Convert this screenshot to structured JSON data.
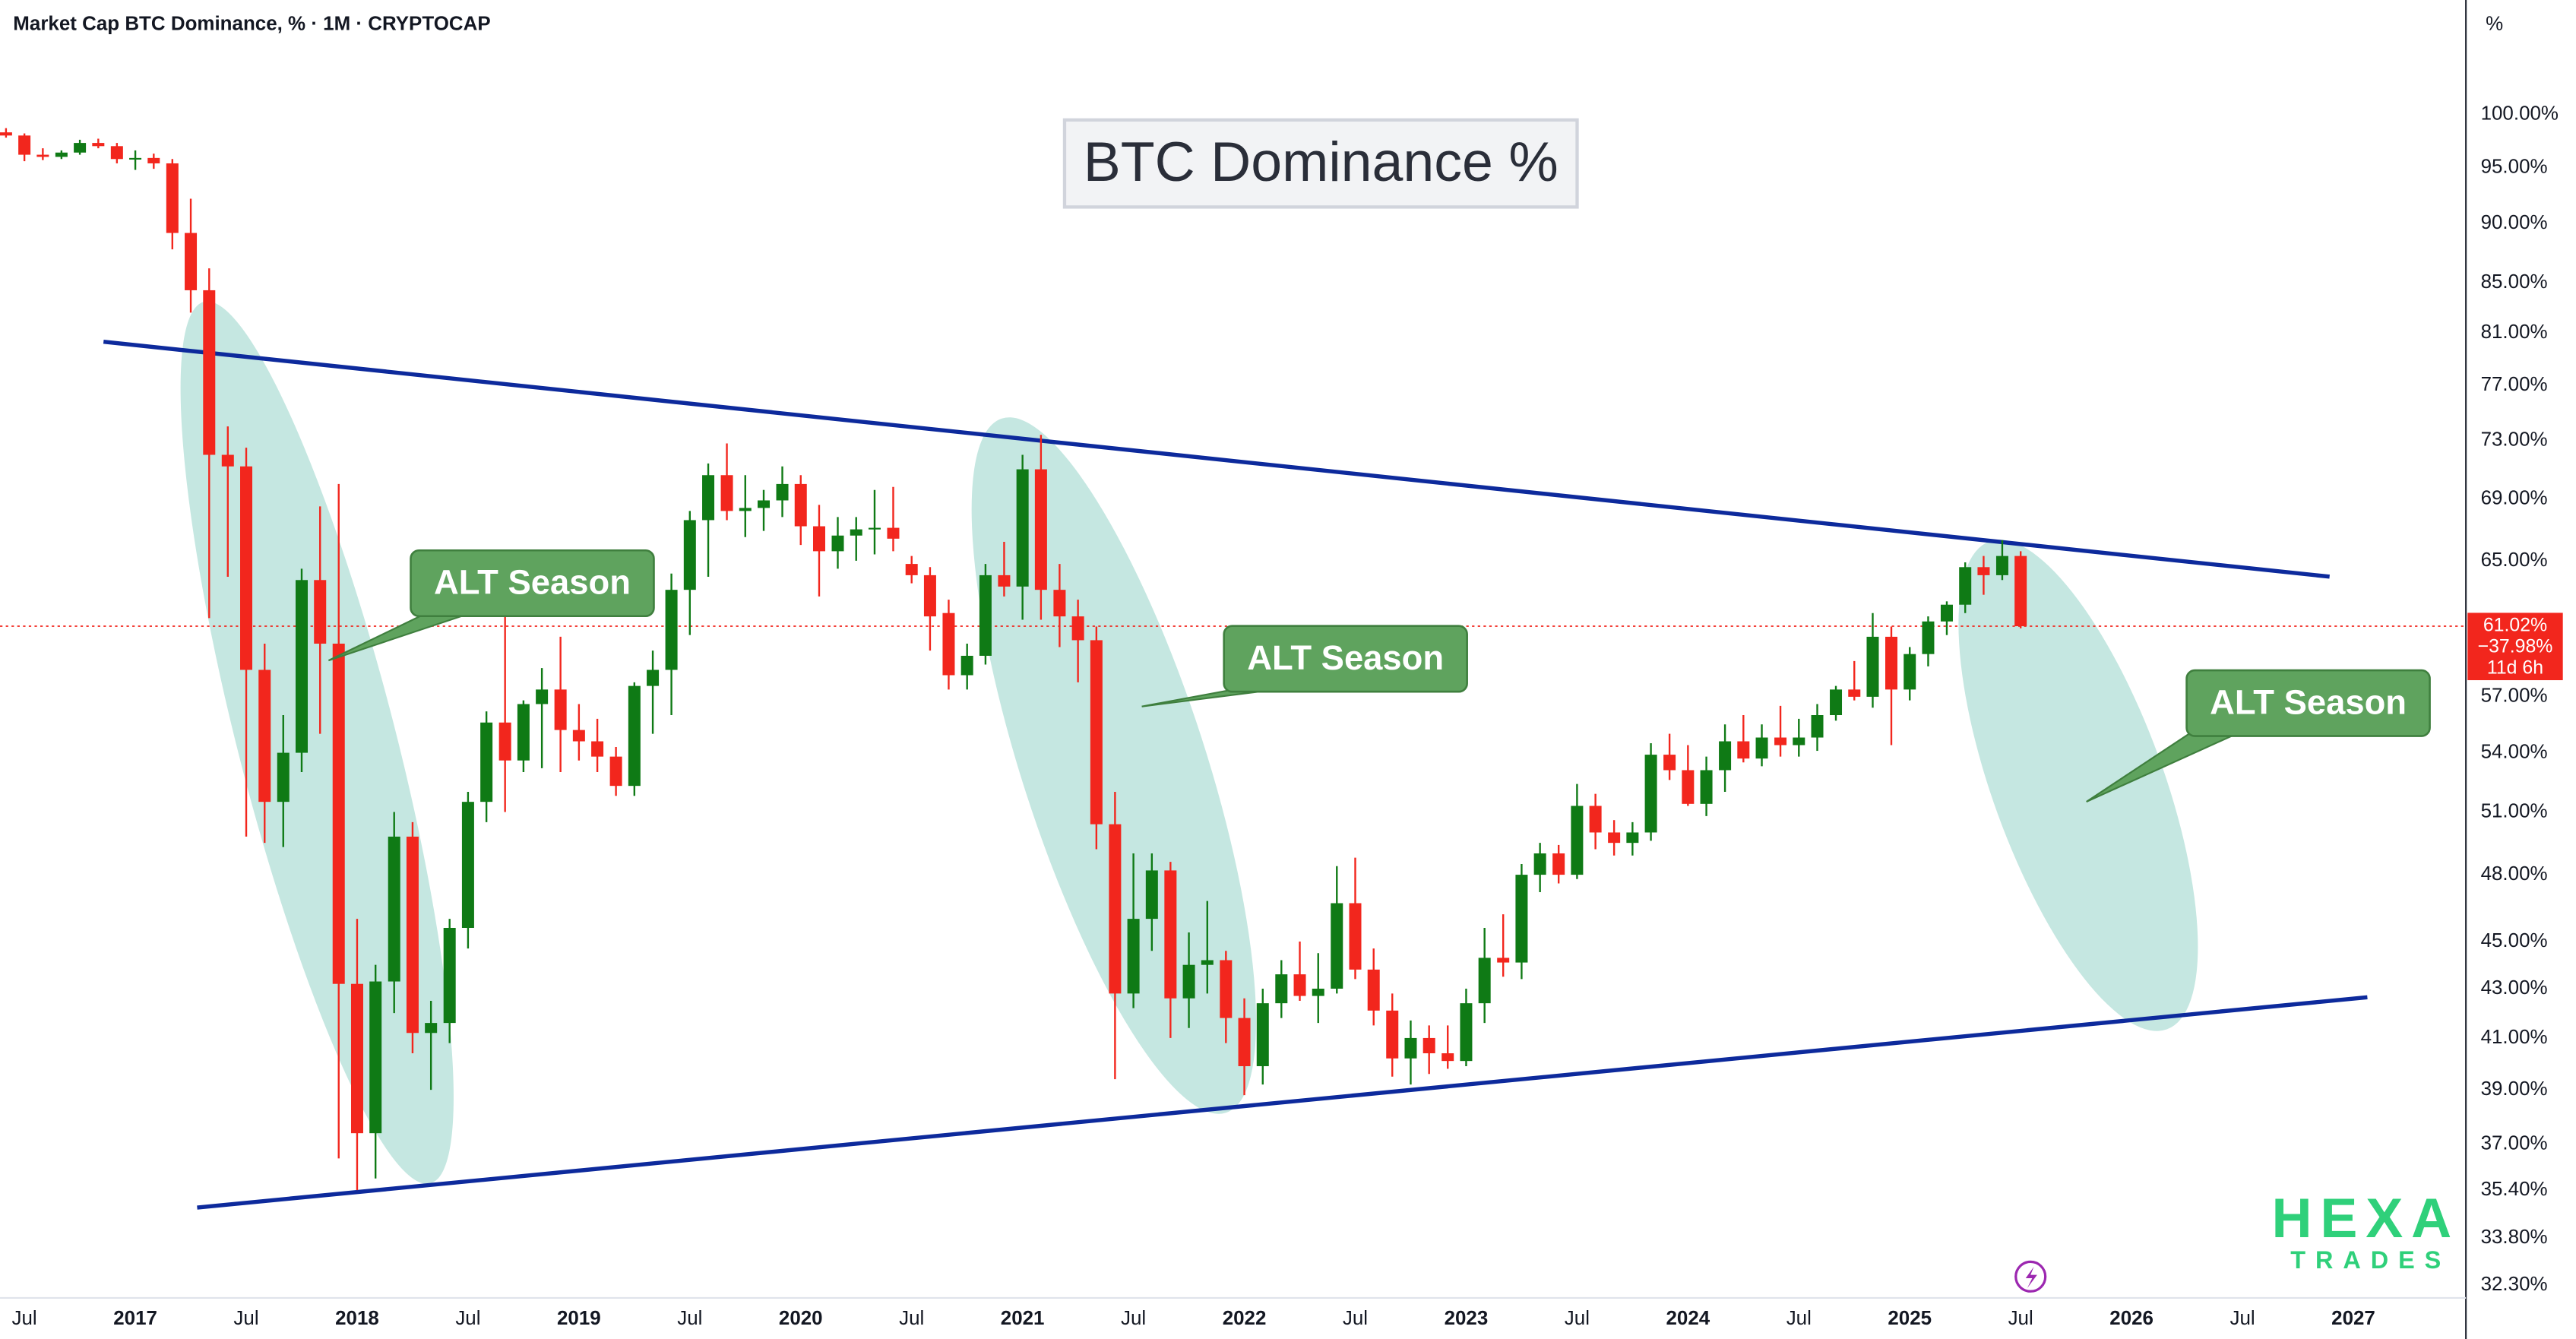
{
  "header": "Market Cap BTC Dominance, % · 1M · CRYPTOCAP",
  "watermark": {
    "line1": "HEXA",
    "line2": "TRADES"
  },
  "chart_data": {
    "type": "candlestick",
    "title": "BTC Dominance %",
    "annotations": [
      "ALT Season",
      "ALT Season",
      "ALT Season"
    ],
    "y_unit": "%",
    "log_scale": true,
    "grid": false,
    "up_color": "#0f7a15",
    "down_color": "#f2261d",
    "last_price": {
      "value": 61.02,
      "label": "61.02%"
    },
    "change_label": "−37.98%",
    "countdown": "11d 6h",
    "x": [
      2016.417,
      2016.5,
      2016.583,
      2016.667,
      2016.75,
      2016.833,
      2016.917,
      2017,
      2017.083,
      2017.167,
      2017.25,
      2017.333,
      2017.417,
      2017.5,
      2017.583,
      2017.667,
      2017.75,
      2017.833,
      2017.917,
      2018,
      2018.083,
      2018.167,
      2018.25,
      2018.333,
      2018.417,
      2018.5,
      2018.583,
      2018.667,
      2018.75,
      2018.833,
      2018.917,
      2019,
      2019.083,
      2019.167,
      2019.25,
      2019.333,
      2019.417,
      2019.5,
      2019.583,
      2019.667,
      2019.75,
      2019.833,
      2019.917,
      2020,
      2020.083,
      2020.167,
      2020.25,
      2020.333,
      2020.417,
      2020.5,
      2020.583,
      2020.667,
      2020.75,
      2020.833,
      2020.917,
      2021,
      2021.083,
      2021.167,
      2021.25,
      2021.333,
      2021.417,
      2021.5,
      2021.583,
      2021.667,
      2021.75,
      2021.833,
      2021.917,
      2022,
      2022.083,
      2022.167,
      2022.25,
      2022.333,
      2022.417,
      2022.5,
      2022.583,
      2022.667,
      2022.75,
      2022.833,
      2022.917,
      2023,
      2023.083,
      2023.167,
      2023.25,
      2023.333,
      2023.417,
      2023.5,
      2023.583,
      2023.667,
      2023.75,
      2023.833,
      2023.917,
      2024,
      2024.083,
      2024.167,
      2024.25,
      2024.333,
      2024.417,
      2024.5,
      2024.583,
      2024.667,
      2024.75,
      2024.833,
      2024.917,
      2025,
      2025.083,
      2025.167,
      2025.25,
      2025.333,
      2025.417,
      2025.5
    ],
    "open": [
      98.3,
      98.0,
      96.2,
      96.0,
      96.4,
      97.3,
      97.0,
      95.8,
      95.9,
      95.4,
      89.2,
      84.4,
      72.0,
      71.2,
      58.5,
      51.5,
      54.0,
      63.8,
      60.0,
      43.2,
      37.4,
      43.3,
      49.8,
      41.2,
      41.6,
      45.6,
      51.5,
      55.6,
      53.6,
      56.6,
      57.4,
      55.2,
      54.6,
      53.8,
      52.3,
      57.6,
      58.5,
      63.2,
      67.6,
      70.6,
      68.2,
      68.4,
      68.9,
      70.0,
      67.2,
      65.6,
      66.6,
      67.0,
      67.1,
      64.8,
      64.1,
      61.8,
      58.2,
      59.3,
      64.1,
      63.4,
      71.0,
      63.2,
      61.6,
      60.2,
      50.4,
      42.8,
      46.0,
      48.2,
      42.6,
      44.0,
      44.2,
      41.8,
      39.9,
      42.4,
      43.6,
      42.7,
      43.0,
      46.7,
      43.8,
      42.1,
      40.2,
      41.0,
      40.4,
      40.1,
      42.4,
      44.3,
      44.1,
      48.0,
      49.0,
      48.0,
      51.3,
      50.0,
      49.5,
      50.0,
      53.9,
      53.1,
      51.4,
      53.1,
      54.6,
      53.7,
      54.8,
      54.4,
      54.8,
      56.0,
      57.4,
      57.0,
      60.4,
      57.4,
      59.4,
      61.3,
      62.3,
      64.6,
      64.1,
      65.3
    ],
    "high": [
      98.7,
      98.2,
      96.8,
      96.6,
      97.6,
      97.7,
      97.3,
      96.6,
      96.3,
      95.8,
      92.2,
      86.2,
      74.0,
      72.5,
      60.0,
      56.0,
      64.5,
      68.5,
      70.0,
      46.0,
      44.0,
      51.0,
      50.5,
      42.5,
      46.0,
      52.0,
      56.2,
      62.3,
      56.8,
      58.6,
      60.4,
      56.6,
      55.8,
      54.3,
      57.8,
      59.6,
      64.2,
      68.2,
      71.4,
      72.8,
      70.6,
      69.6,
      71.2,
      70.6,
      68.6,
      67.8,
      67.8,
      69.6,
      69.8,
      65.3,
      64.6,
      62.6,
      60.0,
      64.8,
      66.2,
      72.0,
      73.4,
      64.8,
      62.6,
      61.0,
      52.0,
      49.0,
      49.0,
      48.6,
      45.4,
      46.8,
      44.6,
      42.6,
      43.0,
      44.2,
      45.0,
      44.5,
      48.4,
      48.8,
      44.7,
      42.8,
      41.7,
      41.5,
      41.5,
      43.0,
      45.6,
      46.2,
      48.5,
      49.5,
      49.4,
      52.4,
      51.9,
      50.6,
      50.5,
      54.5,
      55.0,
      54.4,
      53.8,
      55.5,
      56.0,
      55.5,
      56.5,
      55.8,
      56.6,
      57.6,
      59.0,
      61.8,
      61.0,
      59.8,
      61.6,
      62.5,
      64.9,
      65.3,
      66.3,
      65.6
    ],
    "low": [
      97.8,
      95.6,
      95.7,
      95.8,
      96.2,
      96.8,
      95.4,
      94.8,
      94.9,
      87.8,
      82.6,
      61.5,
      64.0,
      49.8,
      49.5,
      49.3,
      53.0,
      55.0,
      36.5,
      35.4,
      35.8,
      42.0,
      40.4,
      39.0,
      40.8,
      44.7,
      50.5,
      51.0,
      53.0,
      53.2,
      53.0,
      53.6,
      53.0,
      51.8,
      51.8,
      55.0,
      56.0,
      60.5,
      64.0,
      67.6,
      66.5,
      66.9,
      67.8,
      66.0,
      62.8,
      64.5,
      65.0,
      65.4,
      65.6,
      63.6,
      59.6,
      57.4,
      57.4,
      58.8,
      62.8,
      61.4,
      61.4,
      59.8,
      57.8,
      49.2,
      39.4,
      42.2,
      44.6,
      41.0,
      41.4,
      42.8,
      40.8,
      38.8,
      39.2,
      41.8,
      42.5,
      41.6,
      42.8,
      43.4,
      41.5,
      39.5,
      39.2,
      39.6,
      39.8,
      39.9,
      41.6,
      43.5,
      43.4,
      47.2,
      47.6,
      47.8,
      49.2,
      48.9,
      48.9,
      49.6,
      52.6,
      51.3,
      50.8,
      52.0,
      53.5,
      53.3,
      53.8,
      53.8,
      54.1,
      55.7,
      56.8,
      56.4,
      54.4,
      56.8,
      58.7,
      60.5,
      61.8,
      62.9,
      63.8,
      60.9
    ],
    "close": [
      98.0,
      96.2,
      96.0,
      96.4,
      97.3,
      97.0,
      95.8,
      95.9,
      95.4,
      89.2,
      84.4,
      72.0,
      71.2,
      58.5,
      51.5,
      54.0,
      63.8,
      60.0,
      43.2,
      37.4,
      43.3,
      49.8,
      41.2,
      41.6,
      45.6,
      51.5,
      55.6,
      53.6,
      56.6,
      57.4,
      55.2,
      54.6,
      53.8,
      52.3,
      57.6,
      58.5,
      63.2,
      67.6,
      70.6,
      68.2,
      68.4,
      68.9,
      70.0,
      67.2,
      65.6,
      66.6,
      67.0,
      67.1,
      66.4,
      64.1,
      61.6,
      58.2,
      59.3,
      64.1,
      63.4,
      71.0,
      63.2,
      61.6,
      60.2,
      50.4,
      42.8,
      46.0,
      48.2,
      42.6,
      44.0,
      44.2,
      41.8,
      39.9,
      42.4,
      43.6,
      42.7,
      43.0,
      46.7,
      43.8,
      42.1,
      40.2,
      41.0,
      40.4,
      40.1,
      42.4,
      44.3,
      44.1,
      48.0,
      49.0,
      48.0,
      51.3,
      50.0,
      49.5,
      50.0,
      53.9,
      53.1,
      51.4,
      53.1,
      54.6,
      53.7,
      54.8,
      54.4,
      54.8,
      56.0,
      57.4,
      57.0,
      60.4,
      57.4,
      59.4,
      61.3,
      62.3,
      64.6,
      64.1,
      65.3,
      61.02
    ],
    "xlim": [
      2016.39,
      2027.5
    ],
    "xticks": [
      {
        "value": 2016.5,
        "label": "Jul"
      },
      2017,
      {
        "value": 2017.5,
        "label": "Jul"
      },
      2018,
      {
        "value": 2018.5,
        "label": "Jul"
      },
      2019,
      {
        "value": 2019.5,
        "label": "Jul"
      },
      2020,
      {
        "value": 2020.5,
        "label": "Jul"
      },
      2021,
      {
        "value": 2021.5,
        "label": "Jul"
      },
      2022,
      {
        "value": 2022.5,
        "label": "Jul"
      },
      2023,
      {
        "value": 2023.5,
        "label": "Jul"
      },
      2024,
      {
        "value": 2024.5,
        "label": "Jul"
      },
      2025,
      {
        "value": 2025.5,
        "label": "Jul"
      },
      2026,
      {
        "value": 2026.5,
        "label": "Jul"
      },
      2027
    ],
    "ylim": [
      31.9,
      111.7
    ],
    "yticks": [
      {
        "value": 100,
        "label": "100.00%"
      },
      {
        "value": 95,
        "label": "95.00%"
      },
      {
        "value": 90,
        "label": "90.00%"
      },
      {
        "value": 85,
        "label": "85.00%"
      },
      {
        "value": 81,
        "label": "81.00%"
      },
      {
        "value": 77,
        "label": "77.00%"
      },
      {
        "value": 73,
        "label": "73.00%"
      },
      {
        "value": 69,
        "label": "69.00%"
      },
      {
        "value": 65,
        "label": "65.00%"
      },
      {
        "value": 57,
        "label": "57.00%"
      },
      {
        "value": 54,
        "label": "54.00%"
      },
      {
        "value": 51,
        "label": "51.00%"
      },
      {
        "value": 48,
        "label": "48.00%"
      },
      {
        "value": 45,
        "label": "45.00%"
      },
      {
        "value": 43,
        "label": "43.00%"
      },
      {
        "value": 41,
        "label": "41.00%"
      },
      {
        "value": 39,
        "label": "39.00%"
      },
      {
        "value": 37,
        "label": "37.00%"
      },
      {
        "value": 35.4,
        "label": "35.40%"
      },
      {
        "value": 33.8,
        "label": "33.80%"
      },
      {
        "value": 32.3,
        "label": "32.30%"
      }
    ]
  }
}
